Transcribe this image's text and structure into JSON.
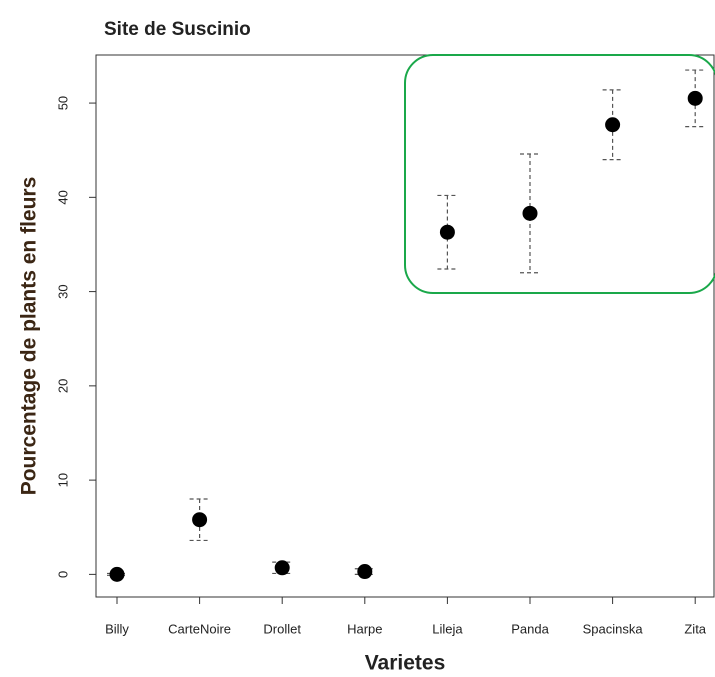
{
  "chart_data": {
    "type": "errorbar",
    "title": "Site de Suscinio",
    "x_label": "Varietes",
    "y_label": "Pourcentage de plants en fleurs",
    "categories": [
      "Billy",
      "CarteNoire",
      "Drollet",
      "Harpe",
      "Lileja",
      "Panda",
      "Spacinska",
      "Zita"
    ],
    "values": [
      0,
      5.8,
      0.7,
      0.3,
      36.3,
      38.3,
      47.7,
      50.5
    ],
    "errors": [
      0.1,
      2.2,
      0.6,
      0.3,
      3.9,
      6.3,
      3.7,
      3.0
    ],
    "color": "#000000",
    "ylim": [
      -2.4,
      55.1
    ],
    "yticks": [
      0,
      10,
      20,
      30,
      40,
      50
    ]
  }
}
